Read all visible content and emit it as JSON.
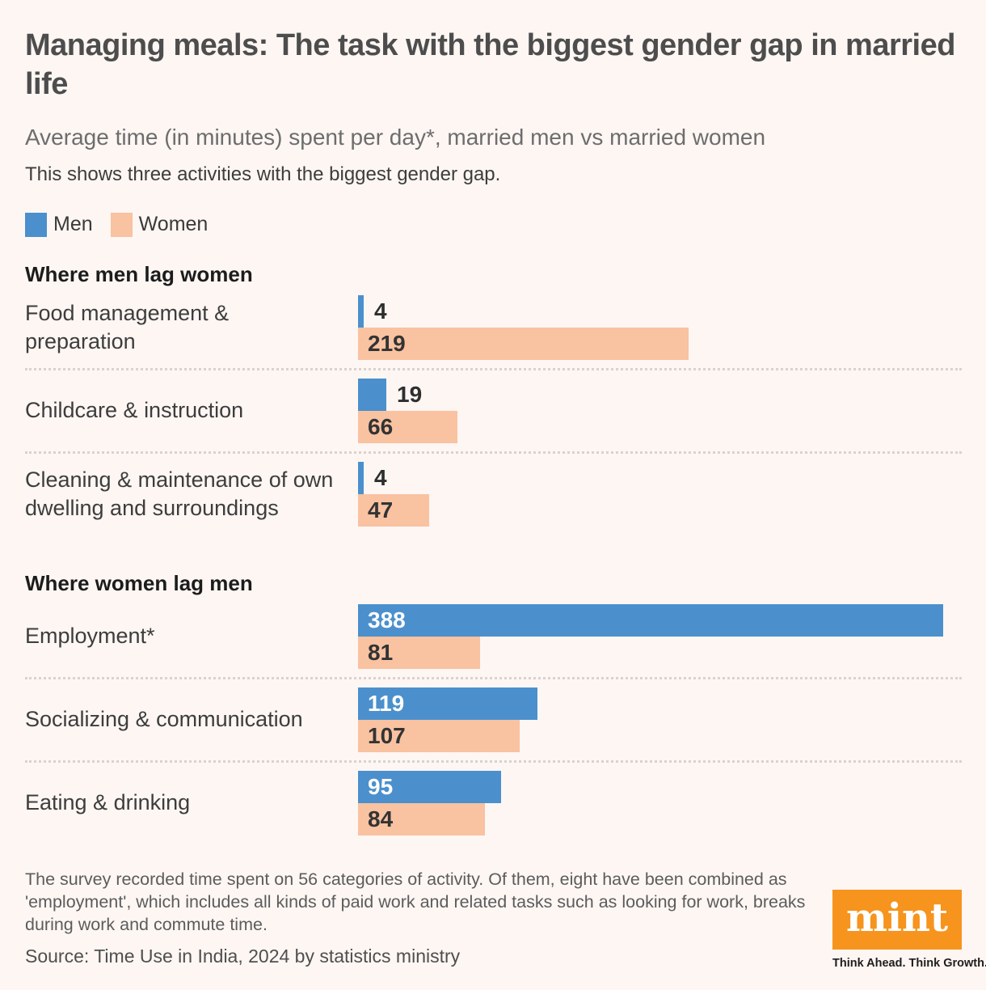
{
  "header": {
    "title": "Managing meals: The task with the biggest gender gap in married life",
    "subtitle": "Average time (in minutes) spent per day*, married men vs married women",
    "note": "This shows three activities with the biggest gender gap."
  },
  "legend": {
    "men_label": "Men",
    "women_label": "Women"
  },
  "colors": {
    "men": "#4b90cd",
    "women": "#f9c2a1",
    "background": "#fdf6f3",
    "logo_orange": "#f6941e"
  },
  "chart_data": {
    "type": "bar",
    "orientation": "horizontal",
    "unit": "minutes per day",
    "x_max": 388,
    "series_names": [
      "Men",
      "Women"
    ],
    "sections": [
      {
        "heading": "Where men lag women",
        "rows": [
          {
            "category": "Food management & preparation",
            "men": 4,
            "women": 219
          },
          {
            "category": "Childcare & instruction",
            "men": 19,
            "women": 66
          },
          {
            "category": "Cleaning & maintenance of own dwelling and surroundings",
            "men": 4,
            "women": 47
          }
        ]
      },
      {
        "heading": "Where women lag men",
        "rows": [
          {
            "category": "Employment*",
            "men": 388,
            "women": 81
          },
          {
            "category": "Socializing & communication",
            "men": 119,
            "women": 107
          },
          {
            "category": "Eating & drinking",
            "men": 95,
            "women": 84
          }
        ]
      }
    ]
  },
  "footer": {
    "footnote": "The survey recorded time spent on 56 categories of activity. Of them, eight have been combined as 'employment', which includes all kinds of paid work and related tasks such as looking for work, breaks during work and commute time.",
    "source": "Source: Time Use in India, 2024 by statistics ministry",
    "logo_text": "mint",
    "tagline": "Think Ahead. Think Growth."
  }
}
